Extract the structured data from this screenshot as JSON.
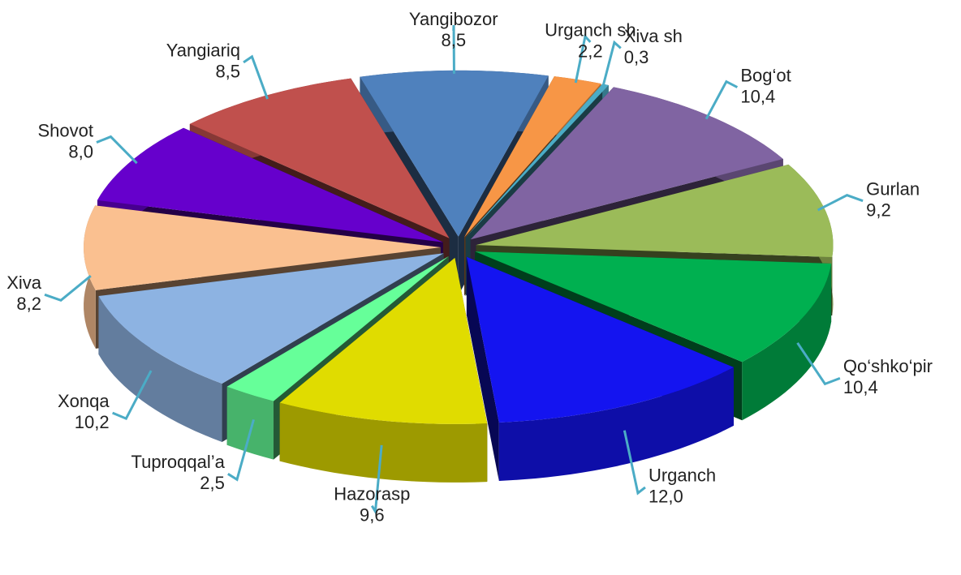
{
  "chart_data": {
    "type": "pie3d",
    "categories": [
      "Yangibozor",
      "Urganch sh",
      "Xiva sh",
      "Bog‘ot",
      "Gurlan",
      "Qo‘shko‘pir",
      "Urganch",
      "Hazorasp",
      "Tuproqqal’a",
      "Xonqa",
      "Xiva",
      "Shovot",
      "Yangiariq"
    ],
    "values": [
      8.5,
      2.2,
      0.3,
      10.4,
      9.2,
      10.4,
      12.0,
      9.6,
      2.5,
      10.2,
      8.2,
      8.0,
      8.5
    ],
    "value_labels": [
      "8,5",
      "2,2",
      "0,3",
      "10,4",
      "9,2",
      "10,4",
      "12,0",
      "9,6",
      "2,5",
      "10,2",
      "8,2",
      "8,0",
      "8,5"
    ],
    "colors": [
      "#4f81bd",
      "#f79646",
      "#4bacc6",
      "#8064a2",
      "#9bbb59",
      "#00b050",
      "#1414f0",
      "#e0dc00",
      "#66ff99",
      "#8db3e2",
      "#fac090",
      "#6600cc",
      "#c0504d"
    ],
    "leader_color": "#4bacc6"
  }
}
